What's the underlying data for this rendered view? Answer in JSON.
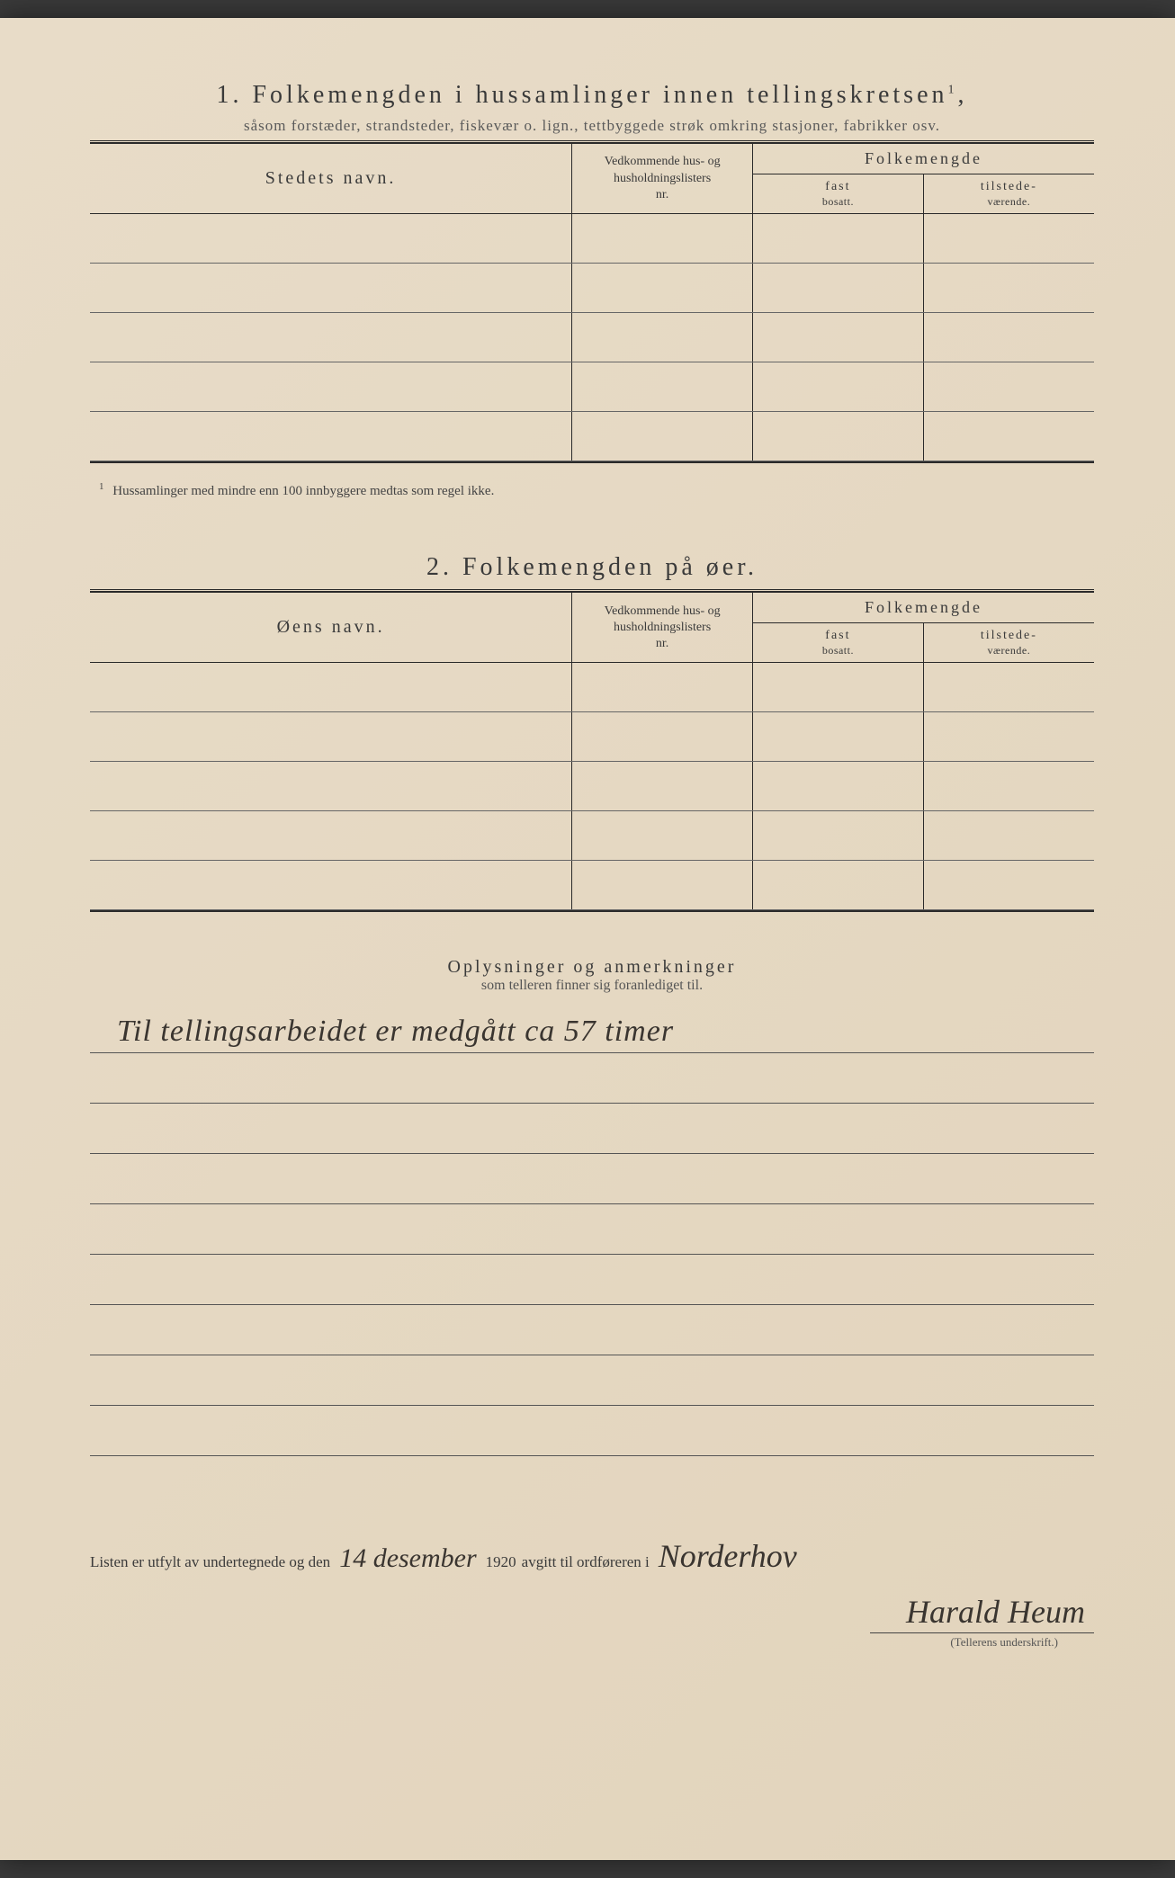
{
  "section1": {
    "number": "1.",
    "title": "Folkemengden i hussamlinger innen tellingskretsen",
    "title_sup": "1",
    "subtitle": "såsom forstæder, strandsteder, fiskevær o. lign., tettbyggede strøk omkring stasjoner, fabrikker osv.",
    "columns": {
      "name": "Stedets navn.",
      "ref_line1": "Vedkommende hus- og",
      "ref_line2": "husholdningslisters",
      "ref_line3": "nr.",
      "pop_group": "Folkemengde",
      "pop_fast": "fast",
      "pop_fast_sub": "bosatt.",
      "pop_tilstede": "tilstede-",
      "pop_tilstede_sub": "værende."
    },
    "rows": [
      "",
      "",
      "",
      "",
      ""
    ],
    "footnote_mark": "1",
    "footnote": "Hussamlinger med mindre enn 100 innbyggere medtas som regel ikke."
  },
  "section2": {
    "number": "2.",
    "title": "Folkemengden på øer.",
    "columns": {
      "name": "Øens navn.",
      "ref_line1": "Vedkommende hus- og",
      "ref_line2": "husholdningslisters",
      "ref_line3": "nr.",
      "pop_group": "Folkemengde",
      "pop_fast": "fast",
      "pop_fast_sub": "bosatt.",
      "pop_tilstede": "tilstede-",
      "pop_tilstede_sub": "værende."
    },
    "rows": [
      "",
      "",
      "",
      "",
      ""
    ]
  },
  "remarks": {
    "title": "Oplysninger og anmerkninger",
    "subtitle": "som telleren finner sig foranlediget til.",
    "handwritten": "Til tellingsarbeidet er medgått ca 57 timer",
    "blank_lines": 9
  },
  "signature": {
    "prefix": "Listen er utfylt av undertegnede og den",
    "date_hand": "14 desember",
    "year": "1920",
    "mid": "avgitt til ordføreren i",
    "place_hand": "Norderhov",
    "name_hand": "Harald Heum",
    "caption": "(Tellerens underskrift.)"
  },
  "colors": {
    "paper": "#e5d8c2",
    "ink": "#2a2a2a",
    "text": "#3a3a3a",
    "faded": "#555555",
    "handwriting": "#3a3530"
  }
}
